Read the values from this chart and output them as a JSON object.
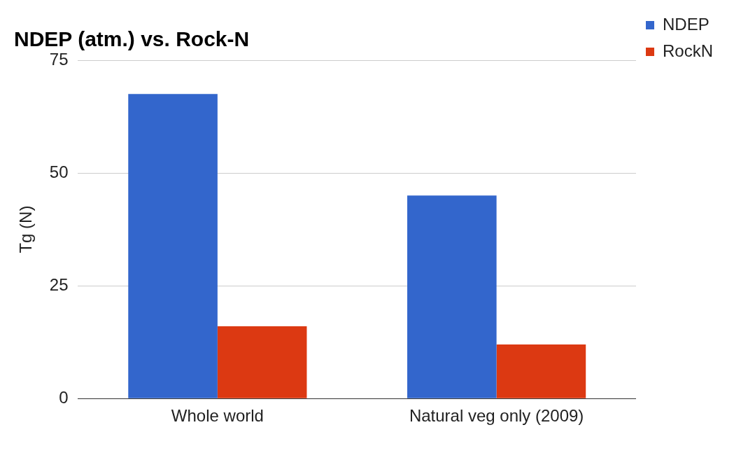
{
  "chart_data": {
    "type": "bar",
    "title": "NDEP (atm.) vs. Rock-N",
    "ylabel": "Tg (N)",
    "categories": [
      "Whole world",
      "Natural veg only (2009)"
    ],
    "series": [
      {
        "name": "NDEP",
        "color": "#3366cc",
        "values": [
          67.5,
          45
        ]
      },
      {
        "name": "RockN",
        "color": "#dc3912",
        "values": [
          16,
          12
        ]
      }
    ],
    "ylim": [
      0,
      75
    ],
    "yticks": [
      0,
      25,
      50,
      75
    ],
    "grid": "y",
    "legend": "top right"
  }
}
